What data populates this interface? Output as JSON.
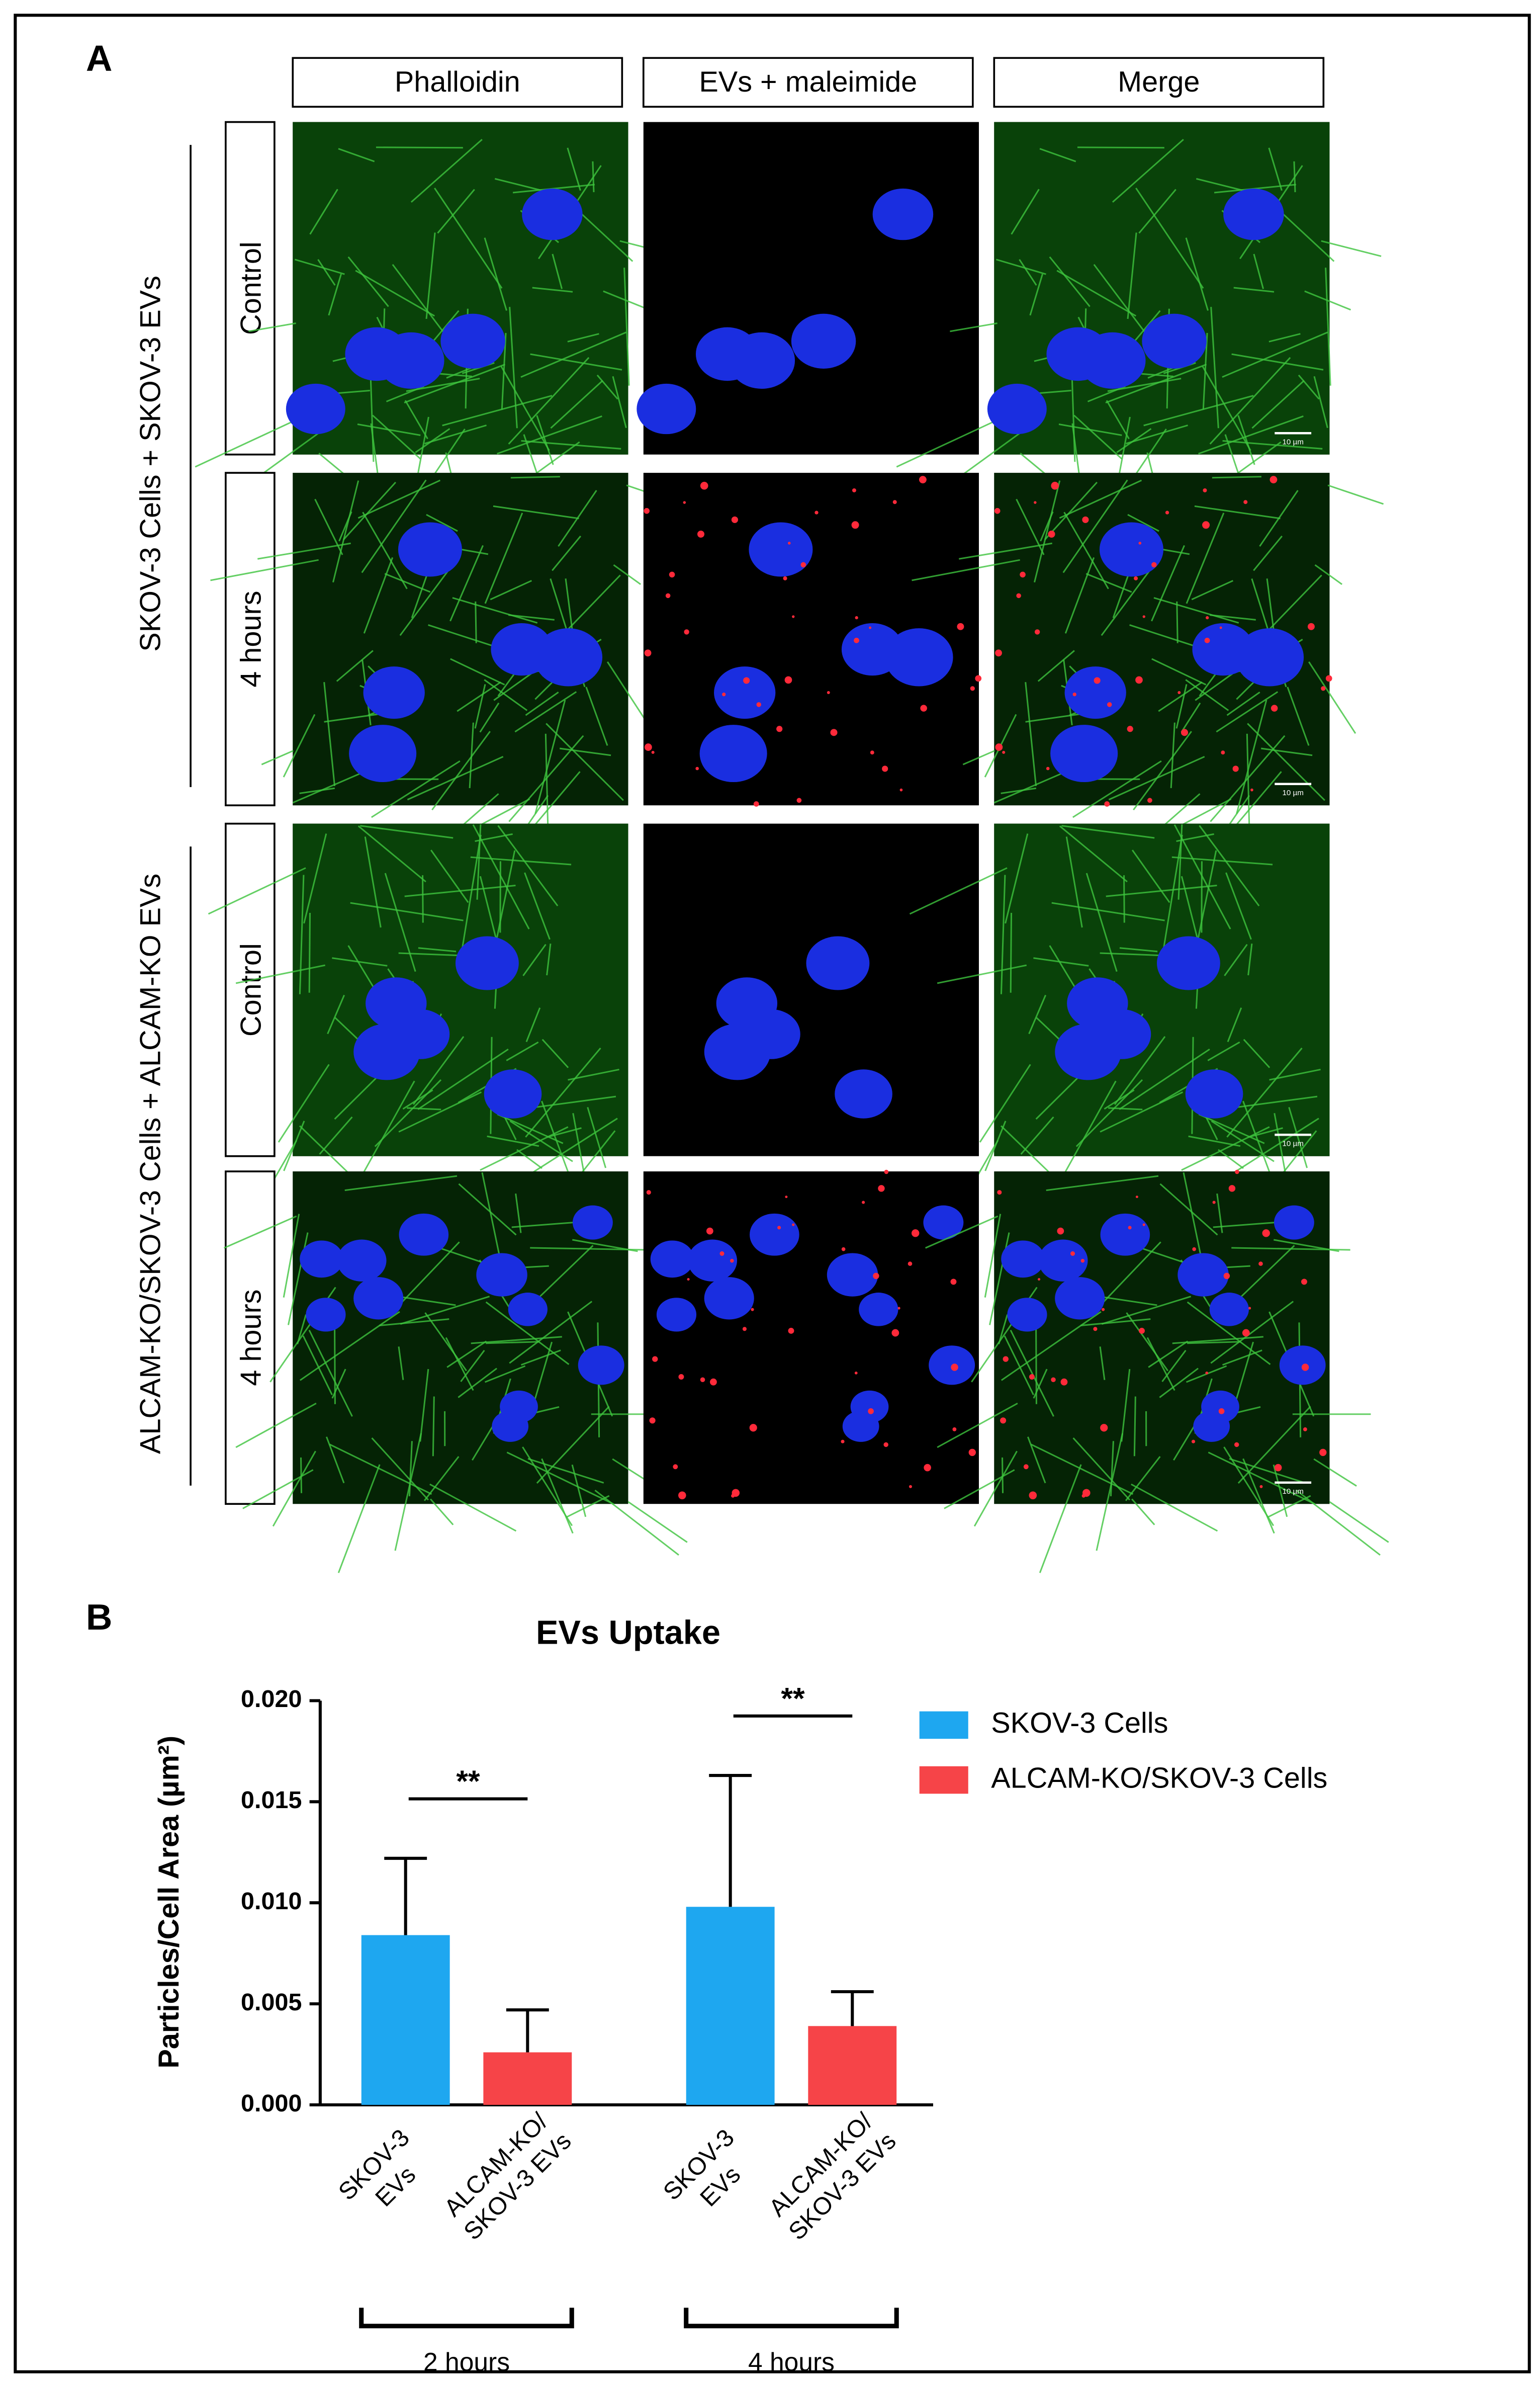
{
  "panel_a": {
    "label": "A",
    "columns": [
      "Phalloidin",
      "EVs + maleimide",
      "Merge"
    ],
    "groups": [
      {
        "label": "SKOV-3 Cells + SKOV-3 EVs",
        "rows": [
          "Control",
          "4 hours"
        ]
      },
      {
        "label": "ALCAM-KO/SKOV-3 Cells + ALCAM-KO EVs",
        "rows": [
          "Control",
          "4 hours"
        ]
      }
    ],
    "scale_bar": "10 µm"
  },
  "chart_data": {
    "type": "bar",
    "panel_label": "B",
    "title": "EVs Uptake",
    "ylabel": "Particles/Cell Area (µm²)",
    "groups": [
      "2 hours",
      "4 hours"
    ],
    "series": [
      {
        "name": "SKOV-3 Cells",
        "color": "#1ea7f0",
        "tick_label": [
          "SKOV-3",
          "EVs"
        ],
        "values": [
          0.0084,
          0.0098
        ],
        "errors": [
          0.0038,
          0.0065
        ]
      },
      {
        "name": "ALCAM-KO/SKOV-3 Cells",
        "color": "#f64448",
        "tick_label": [
          "ALCAM-KO/",
          "SKOV-3 EVs"
        ],
        "values": [
          0.0026,
          0.0039
        ],
        "errors": [
          0.0021,
          0.0017
        ]
      }
    ],
    "significance": [
      "**",
      "**"
    ],
    "ylim": [
      0,
      0.02
    ],
    "yticks": [
      {
        "value": 0,
        "label": "0.000"
      },
      {
        "value": 0.005,
        "label": "0.005"
      },
      {
        "value": 0.01,
        "label": "0.010"
      },
      {
        "value": 0.015,
        "label": "0.015"
      },
      {
        "value": 0.02,
        "label": "0.020"
      }
    ],
    "legend": "top-right"
  }
}
